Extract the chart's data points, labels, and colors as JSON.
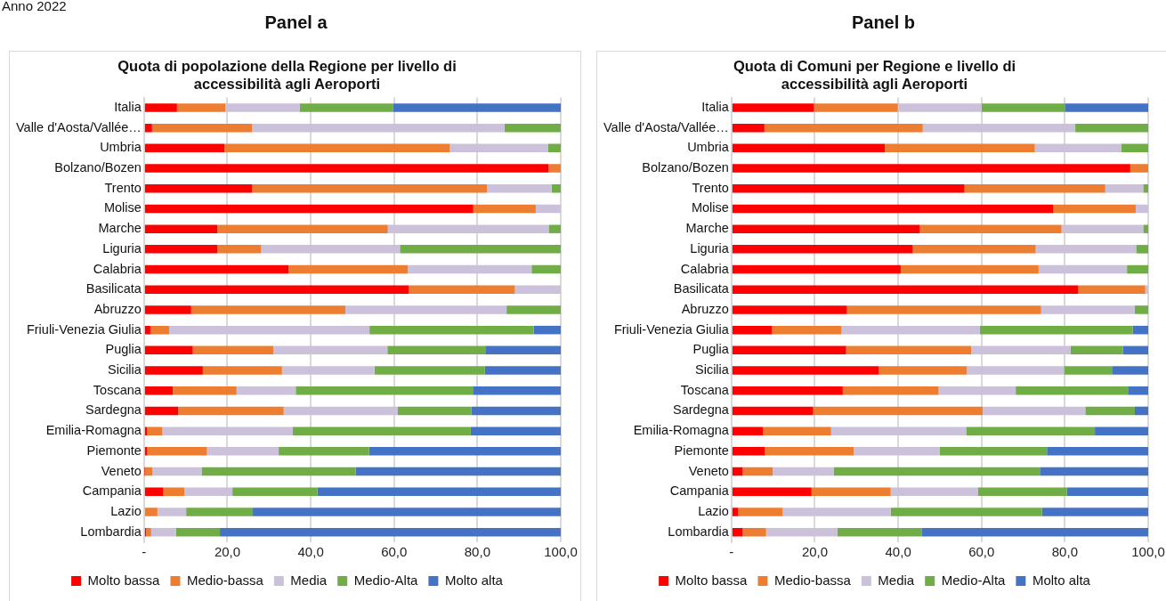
{
  "chart_data": [
    {
      "type": "bar",
      "title": "Quota di popolazione della Regione per livello di accessibilità agli Aeroporti",
      "subtitle": "Panel a",
      "annotations": [
        "Anno 2022"
      ],
      "orientation": "horizontal",
      "stacked": true,
      "grid": "x",
      "legend": "bottom",
      "categories": [
        "Italia",
        "Valle d'Aosta/Vallée…",
        "Umbria",
        "Bolzano/Bozen",
        "Trento",
        "Molise",
        "Marche",
        "Liguria",
        "Calabria",
        "Basilicata",
        "Abruzzo",
        "Friuli-Venezia Giulia",
        "Puglia",
        "Sicilia",
        "Toscana",
        "Sardegna",
        "Emilia-Romagna",
        "Piemonte",
        "Veneto",
        "Campania",
        "Lazio",
        "Lombardia"
      ],
      "xlim": [
        0,
        100
      ],
      "xticks": [
        {
          "value": 0,
          "label": "-"
        },
        {
          "value": 20,
          "label": "20,0"
        },
        {
          "value": 40,
          "label": "40,0"
        },
        {
          "value": 60,
          "label": "60,0"
        },
        {
          "value": 80,
          "label": "80,0"
        },
        {
          "value": 100,
          "label": "100,0"
        }
      ],
      "series": [
        {
          "name": "Molto bassa",
          "color": "#ff0000",
          "values": [
            7.9,
            1.9,
            19.3,
            97.1,
            25.9,
            79.0,
            17.6,
            17.6,
            34.7,
            63.5,
            11.3,
            1.5,
            11.7,
            14.1,
            6.9,
            8.2,
            0.7,
            0.7,
            0.1,
            4.6,
            0,
            0.5
          ]
        },
        {
          "name": "Medio-bassa",
          "color": "#ed7d31",
          "values": [
            11.6,
            24.0,
            54.1,
            2.9,
            56.4,
            15.0,
            40.9,
            10.5,
            28.6,
            25.5,
            37.0,
            4.5,
            19.3,
            19.0,
            15.3,
            25.3,
            3.7,
            14.4,
            1.9,
            5.1,
            3.2,
            1.2
          ]
        },
        {
          "name": "Media",
          "color": "#ccc1da",
          "values": [
            17.9,
            60.6,
            23.6,
            0,
            15.5,
            6.0,
            38.6,
            33.3,
            29.7,
            11.0,
            38.7,
            48.1,
            27.4,
            22.2,
            14.2,
            27.4,
            31.3,
            17.2,
            11.8,
            11.5,
            6.9,
            6.0
          ]
        },
        {
          "name": "Medio-Alta",
          "color": "#70ad47",
          "values": [
            22.3,
            13.5,
            3.0,
            0,
            2.2,
            0,
            2.9,
            38.6,
            7.0,
            0,
            13.0,
            39.4,
            23.5,
            26.5,
            42.5,
            17.7,
            42.7,
            21.7,
            37.0,
            20.4,
            16.0,
            10.5
          ]
        },
        {
          "name": "Molto alta",
          "color": "#4472c4",
          "values": [
            40.3,
            0,
            0,
            0,
            0,
            0,
            0,
            0,
            0,
            0,
            0,
            6.5,
            18.1,
            18.2,
            21.1,
            21.4,
            21.6,
            46.0,
            49.2,
            58.4,
            73.9,
            81.8
          ]
        }
      ]
    },
    {
      "type": "bar",
      "title": "Quota di Comuni per Regione e livello di accessibilità agli Aeroporti",
      "subtitle": "Panel b",
      "orientation": "horizontal",
      "stacked": true,
      "grid": "x",
      "legend": "bottom",
      "categories": [
        "Italia",
        "Valle d'Aosta/Vallée…",
        "Umbria",
        "Bolzano/Bozen",
        "Trento",
        "Molise",
        "Marche",
        "Liguria",
        "Calabria",
        "Basilicata",
        "Abruzzo",
        "Friuli-Venezia Giulia",
        "Puglia",
        "Sicilia",
        "Toscana",
        "Sardegna",
        "Emilia-Romagna",
        "Piemonte",
        "Veneto",
        "Campania",
        "Lazio",
        "Lombardia"
      ],
      "xlim": [
        0,
        100
      ],
      "xticks": [
        {
          "value": 0,
          "label": "-"
        },
        {
          "value": 20,
          "label": "20,0"
        },
        {
          "value": 40,
          "label": "40,0"
        },
        {
          "value": 60,
          "label": "60,0"
        },
        {
          "value": 80,
          "label": "80,0"
        },
        {
          "value": 100,
          "label": "100,0"
        }
      ],
      "series": [
        {
          "name": "Molto bassa",
          "color": "#ff0000",
          "values": [
            19.8,
            7.9,
            36.8,
            95.7,
            55.9,
            77.2,
            45.2,
            43.5,
            40.6,
            83.2,
            27.7,
            9.7,
            27.5,
            35.3,
            26.7,
            19.6,
            7.5,
            8.0,
            2.7,
            19.2,
            1.6,
            2.7
          ]
        },
        {
          "name": "Medio-bassa",
          "color": "#ed7d31",
          "values": [
            20.1,
            38.0,
            36.0,
            4.3,
            33.8,
            19.8,
            34.0,
            29.5,
            33.1,
            16.1,
            46.6,
            16.7,
            30.0,
            21.2,
            23.0,
            40.7,
            16.4,
            21.3,
            7.2,
            19.0,
            10.7,
            5.6
          ]
        },
        {
          "name": "Media",
          "color": "#ccc1da",
          "values": [
            20.1,
            36.6,
            20.7,
            0,
            9.1,
            3.0,
            19.6,
            24.1,
            21.2,
            0.7,
            22.5,
            33.2,
            23.9,
            23.3,
            18.5,
            24.6,
            32.4,
            20.7,
            14.6,
            21.0,
            25.9,
            17.1
          ]
        },
        {
          "name": "Medio-Alta",
          "color": "#70ad47",
          "values": [
            20.0,
            17.5,
            6.5,
            0,
            1.2,
            0,
            1.2,
            2.9,
            5.1,
            0,
            3.2,
            36.7,
            12.5,
            11.5,
            27.1,
            11.9,
            30.9,
            25.7,
            49.5,
            21.3,
            36.3,
            20.2
          ]
        },
        {
          "name": "Molto alta",
          "color": "#4472c4",
          "values": [
            20.0,
            0,
            0,
            0,
            0,
            0,
            0,
            0,
            0,
            0,
            0,
            3.7,
            6.1,
            8.7,
            4.7,
            3.2,
            12.8,
            24.3,
            26.0,
            19.5,
            25.5,
            54.4
          ]
        }
      ]
    }
  ]
}
